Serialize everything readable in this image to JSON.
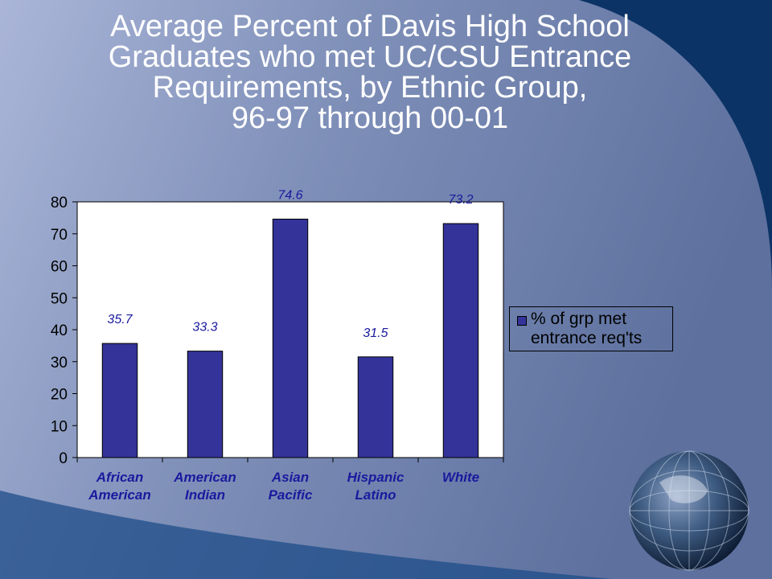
{
  "slide": {
    "title_lines": [
      "Average Percent of Davis High School",
      "Graduates who met UC/CSU Entrance",
      "Requirements, by Ethnic Group,",
      "96-97 through 00-01"
    ],
    "colors": {
      "bar": "#333399",
      "label": "#1a1a9e",
      "plot_bg": "#ffffff"
    },
    "decor_icon": "globe-icon"
  },
  "chart_data": {
    "type": "bar",
    "categories": [
      [
        "African",
        "American"
      ],
      [
        "American",
        "Indian"
      ],
      [
        "Asian",
        "Pacific"
      ],
      [
        "Hispanic",
        "Latino"
      ],
      [
        "White"
      ]
    ],
    "series": [
      {
        "name": "% of grp met entrance req'ts",
        "values": [
          35.7,
          33.3,
          74.6,
          31.5,
          73.2
        ]
      }
    ],
    "data_labels": [
      "35.7",
      "33.3",
      "74.6",
      "31.5",
      "73.2"
    ],
    "ylim": [
      0,
      80
    ],
    "yticks": [
      0,
      10,
      20,
      30,
      40,
      50,
      60,
      70,
      80
    ],
    "legend": {
      "position": "right",
      "lines": [
        "% of grp met",
        "entrance req'ts"
      ]
    },
    "grid": false
  }
}
